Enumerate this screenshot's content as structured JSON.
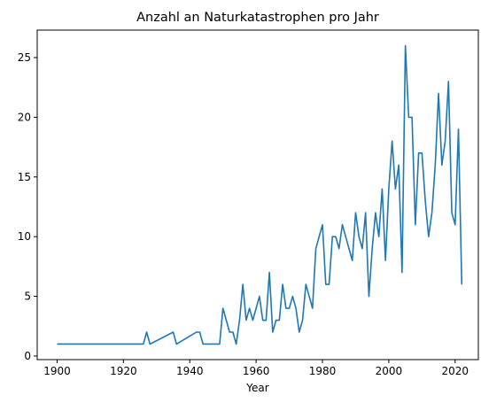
{
  "chart_data": {
    "type": "line",
    "title": "Anzahl an Naturkatastrophen pro Jahr",
    "xlabel": "Year",
    "ylabel": "",
    "xlim": [
      1894,
      2027
    ],
    "ylim": [
      -0.3,
      27.3
    ],
    "xticks": [
      1900,
      1920,
      1940,
      1960,
      1980,
      2000,
      2020
    ],
    "yticks": [
      0,
      5,
      10,
      15,
      20,
      25
    ],
    "grid": false,
    "line_color": "#1f77b4",
    "series": [
      {
        "x": [
          1900,
          1926,
          1927,
          1928,
          1935,
          1936,
          1942,
          1943,
          1944,
          1948,
          1949,
          1950,
          1952,
          1953,
          1954,
          1955,
          1956,
          1957,
          1958,
          1959,
          1960,
          1961,
          1962,
          1963,
          1964,
          1965,
          1966,
          1967,
          1968,
          1969,
          1970,
          1971,
          1972,
          1973,
          1974,
          1975,
          1976,
          1977,
          1978,
          1979,
          1980,
          1981,
          1982,
          1983,
          1984,
          1985,
          1986,
          1987,
          1988,
          1989,
          1990,
          1991,
          1992,
          1993,
          1994,
          1995,
          1996,
          1997,
          1998,
          1999,
          2000,
          2001,
          2002,
          2003,
          2004,
          2005,
          2006,
          2007,
          2008,
          2009,
          2010,
          2011,
          2012,
          2013,
          2014,
          2015,
          2016,
          2017,
          2018,
          2019,
          2020,
          2021,
          2022
        ],
        "values": [
          1,
          1,
          2,
          1,
          2,
          1,
          2,
          2,
          1,
          1,
          1,
          4,
          2,
          2,
          1,
          3,
          6,
          3,
          4,
          3,
          4,
          5,
          3,
          3,
          7,
          2,
          3,
          3,
          6,
          4,
          4,
          5,
          4,
          2,
          3,
          6,
          5,
          4,
          9,
          10,
          11,
          6,
          6,
          10,
          10,
          9,
          11,
          10,
          9,
          8,
          12,
          10,
          9,
          12,
          5,
          9,
          12,
          10,
          14,
          8,
          14,
          18,
          14,
          16,
          7,
          26,
          20,
          20,
          11,
          17,
          17,
          13,
          10,
          12,
          16,
          22,
          16,
          18,
          23,
          12,
          11,
          19,
          6
        ]
      }
    ]
  }
}
